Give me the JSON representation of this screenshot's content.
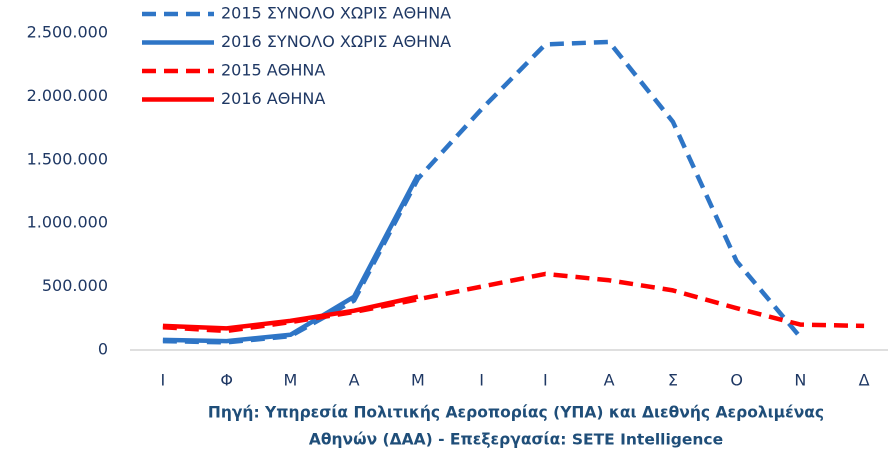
{
  "chart_data": {
    "type": "line",
    "categories": [
      "Ι",
      "Φ",
      "Μ",
      "Α",
      "Μ",
      "Ι",
      "Ι",
      "Α",
      "Σ",
      "Ο",
      "Ν",
      "Δ"
    ],
    "series": [
      {
        "name": "2015 ΣΥΝΟΛΟ ΧΩΡΙΣ ΑΘΗΝΑ",
        "color": "#2e75c6",
        "dashed": true,
        "values": [
          70000,
          60000,
          110000,
          390000,
          1350000,
          1900000,
          2410000,
          2430000,
          1800000,
          700000,
          100000,
          null
        ]
      },
      {
        "name": "2016 ΣΥΝΟΛΟ ΧΩΡΙΣ ΑΘΗΝΑ",
        "color": "#2e75c6",
        "dashed": false,
        "values": [
          80000,
          70000,
          120000,
          420000,
          1380000,
          null,
          null,
          null,
          null,
          null,
          null,
          null
        ]
      },
      {
        "name": "2015 ΑΘΗΝΑ",
        "color": "#ff0000",
        "dashed": true,
        "values": [
          180000,
          150000,
          220000,
          300000,
          400000,
          500000,
          600000,
          550000,
          470000,
          330000,
          200000,
          190000
        ]
      },
      {
        "name": "2016 ΑΘΗΝΑ",
        "color": "#ff0000",
        "dashed": false,
        "values": [
          190000,
          170000,
          230000,
          310000,
          420000,
          null,
          null,
          null,
          null,
          null,
          null,
          null
        ]
      }
    ],
    "ylim": [
      0,
      2500000
    ],
    "yticks": [
      0,
      {
        "value": 500000,
        "label": "500.000"
      },
      {
        "value": 1000000,
        "label": "1.000.000"
      },
      {
        "value": 1500000,
        "label": "1.500.000"
      },
      {
        "value": 2000000,
        "label": "2.000.000"
      },
      {
        "value": 2500000,
        "label": "2.500.000"
      }
    ],
    "grid": false,
    "legend": "top-left",
    "source": [
      "Πηγή: Υπηρεσία Πολιτικής Αεροπορίας (ΥΠΑ)  και Διεθνής  Αερολιμένας",
      "Αθηνών (ΔΑΑ) - Επεξεργασία: SETE Intelligence"
    ]
  }
}
